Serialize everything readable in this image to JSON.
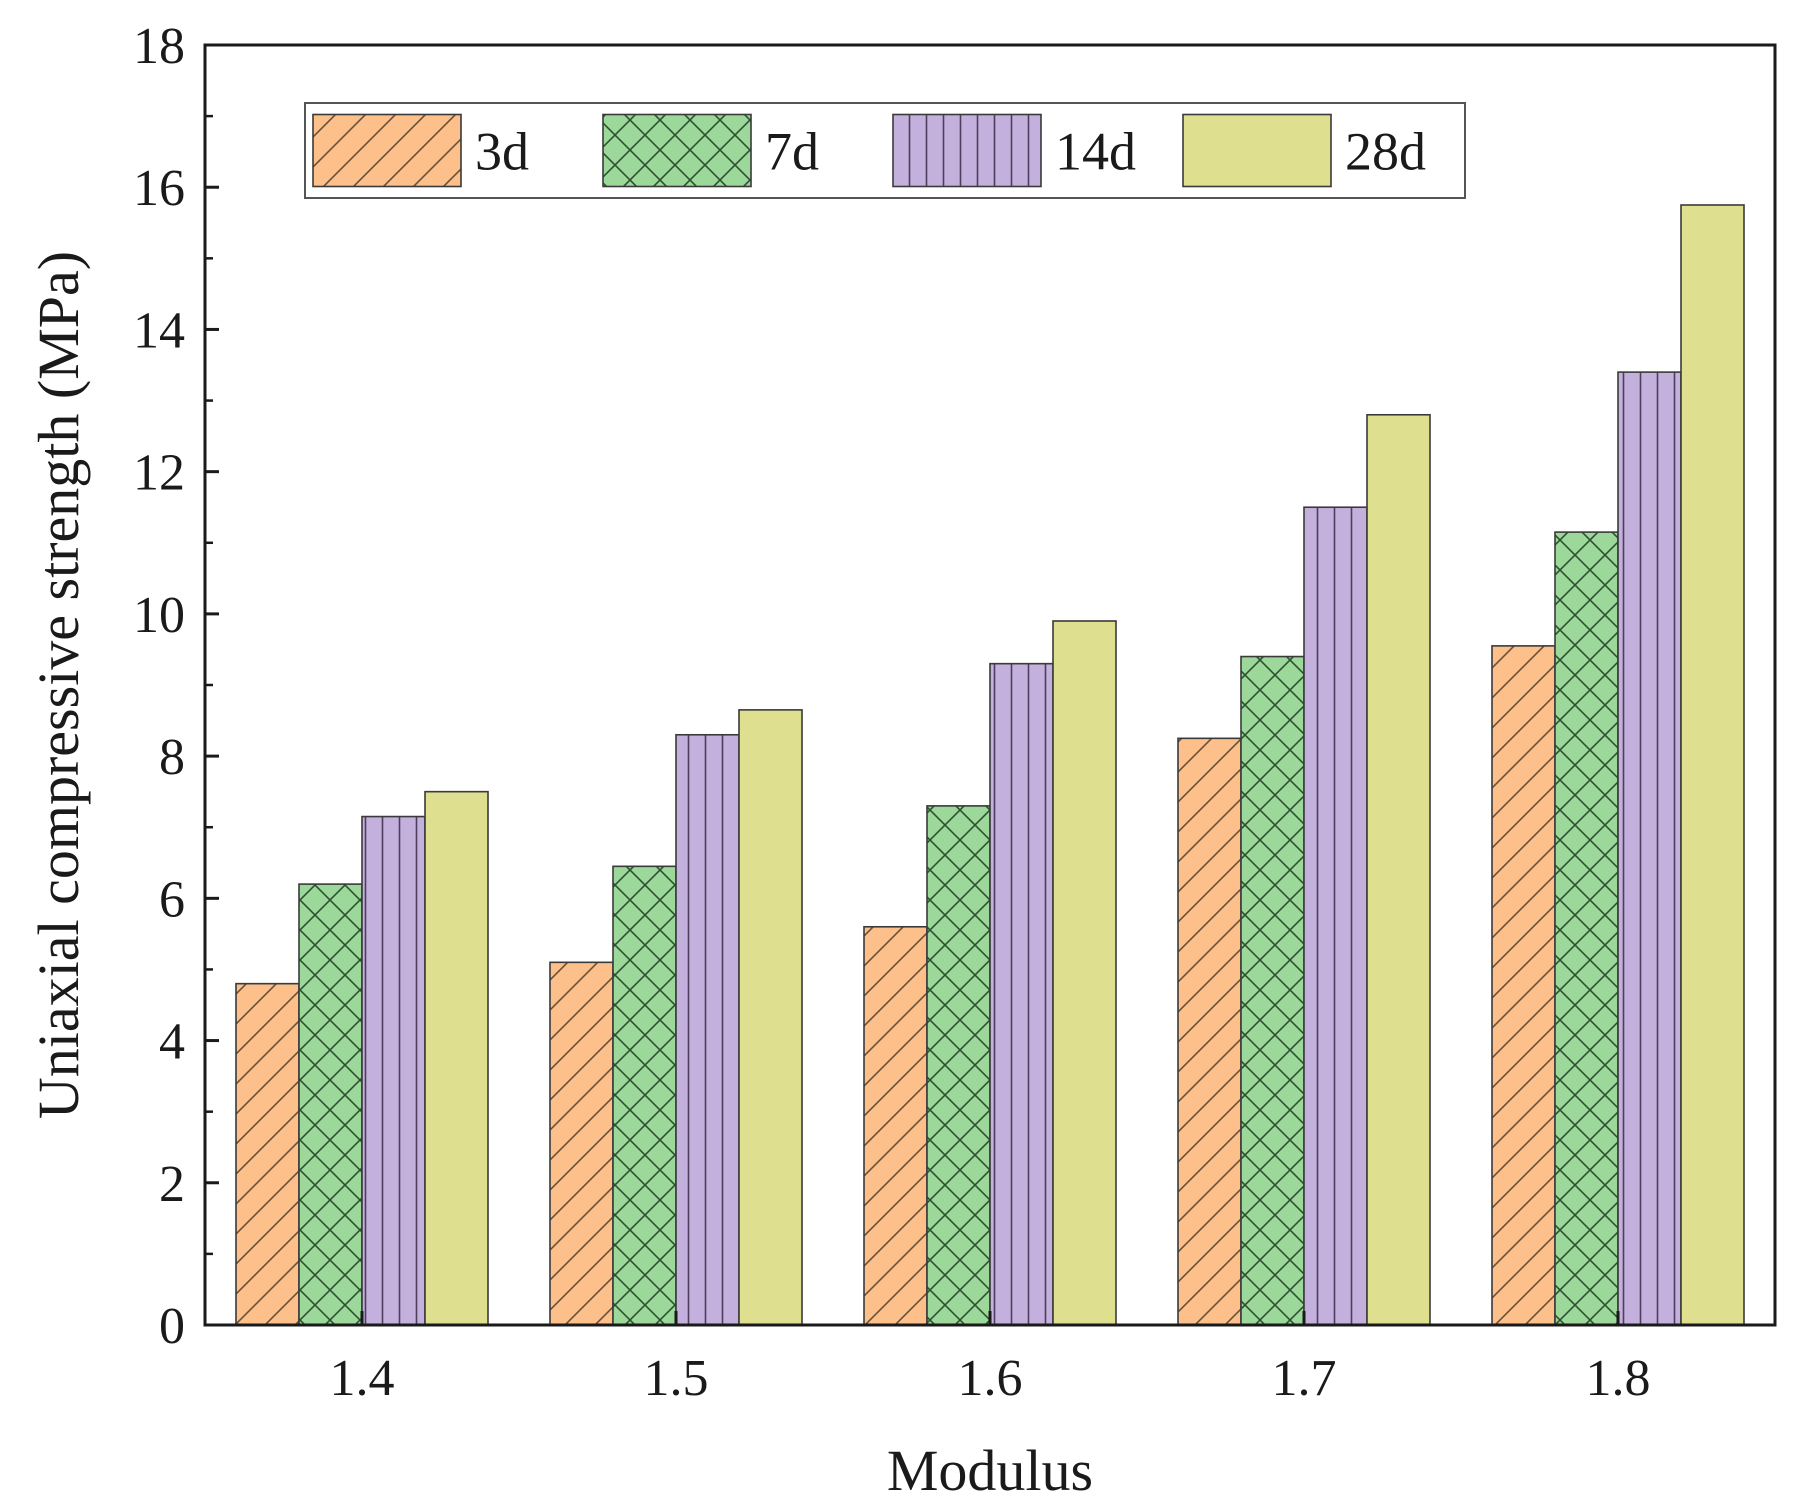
{
  "chart_data": {
    "type": "bar",
    "title": "",
    "xlabel": "Modulus",
    "ylabel": "Uniaxial compressive strength (MPa)",
    "categories": [
      "1.4",
      "1.5",
      "1.6",
      "1.7",
      "1.8"
    ],
    "ylim": [
      0,
      18
    ],
    "yticks": [
      "0",
      "2",
      "4",
      "6",
      "8",
      "10",
      "12",
      "14",
      "16",
      "18"
    ],
    "grid": false,
    "legend_position": "top-left",
    "series": [
      {
        "name": "3d",
        "color": "#fdc08a",
        "pattern": "diagonal-hatch",
        "values": [
          4.8,
          5.1,
          5.6,
          8.25,
          9.55
        ]
      },
      {
        "name": "7d",
        "color": "#9bd89a",
        "pattern": "cross-hatch",
        "values": [
          6.2,
          6.45,
          7.3,
          9.4,
          11.15
        ]
      },
      {
        "name": "14d",
        "color": "#c4b0dc",
        "pattern": "vertical-lines",
        "values": [
          7.15,
          8.3,
          9.3,
          11.5,
          13.4
        ]
      },
      {
        "name": "28d",
        "color": "#dfe08f",
        "pattern": "none",
        "values": [
          7.5,
          8.65,
          9.9,
          12.8,
          15.75
        ]
      }
    ]
  }
}
